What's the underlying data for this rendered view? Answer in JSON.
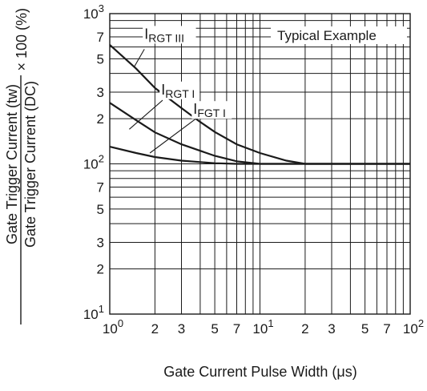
{
  "chart_data": {
    "type": "line",
    "x_scale": "log",
    "y_scale": "log",
    "xlim": [
      1,
      100
    ],
    "ylim": [
      10,
      1000
    ],
    "grid": true,
    "xlabel": "Gate Current Pulse Width  (μs)",
    "ylabel": {
      "numerator": "Gate Trigger Current  (tw)",
      "denominator": "Gate Trigger Current  (DC)",
      "suffix": "× 100 (%)"
    },
    "legend_box": "Typical Example",
    "x_ticks": [
      {
        "value": 1,
        "base": "10",
        "exp": "0"
      },
      {
        "value": 2,
        "label": "2"
      },
      {
        "value": 3,
        "label": "3"
      },
      {
        "value": 5,
        "label": "5"
      },
      {
        "value": 7,
        "label": "7"
      },
      {
        "value": 10,
        "base": "10",
        "exp": "1"
      },
      {
        "value": 20,
        "label": "2"
      },
      {
        "value": 30,
        "label": "3"
      },
      {
        "value": 50,
        "label": "5"
      },
      {
        "value": 70,
        "label": "7"
      },
      {
        "value": 100,
        "base": "10",
        "exp": "2"
      }
    ],
    "y_ticks": [
      {
        "value": 1000,
        "base": "10",
        "exp": "3"
      },
      {
        "value": 700,
        "label": "7"
      },
      {
        "value": 500,
        "label": "5"
      },
      {
        "value": 300,
        "label": "3"
      },
      {
        "value": 200,
        "label": "2"
      },
      {
        "value": 100,
        "base": "10",
        "exp": "2"
      },
      {
        "value": 70,
        "label": "7"
      },
      {
        "value": 50,
        "label": "5"
      },
      {
        "value": 30,
        "label": "3"
      },
      {
        "value": 20,
        "label": "2"
      },
      {
        "value": 10,
        "base": "10",
        "exp": "1"
      }
    ],
    "x_grid": [
      1,
      2,
      3,
      4,
      5,
      6,
      7,
      8,
      9,
      10,
      20,
      30,
      40,
      50,
      60,
      70,
      80,
      90,
      100
    ],
    "y_grid": [
      10,
      20,
      30,
      40,
      50,
      60,
      70,
      80,
      90,
      100,
      200,
      300,
      400,
      500,
      600,
      700,
      800,
      900,
      1000
    ],
    "series": [
      {
        "label_main": "I",
        "label_sub": "RGT III",
        "points": [
          [
            1,
            620
          ],
          [
            1.5,
            430
          ],
          [
            2,
            320
          ],
          [
            3,
            235
          ],
          [
            4,
            190
          ],
          [
            5,
            163
          ],
          [
            7,
            135
          ],
          [
            10,
            118
          ],
          [
            15,
            105
          ],
          [
            20,
            100
          ],
          [
            50,
            100
          ],
          [
            100,
            100
          ]
        ],
        "label_anchor": [
          1.7,
          680
        ],
        "leader": [
          [
            1.7,
            580
          ],
          [
            1.45,
            440
          ]
        ]
      },
      {
        "label_main": "I",
        "label_sub": "RGT I",
        "points": [
          [
            1,
            255
          ],
          [
            1.5,
            195
          ],
          [
            2,
            162
          ],
          [
            3,
            135
          ],
          [
            5,
            113
          ],
          [
            7,
            104
          ],
          [
            10,
            100
          ],
          [
            100,
            100
          ]
        ],
        "label_anchor": [
          2.2,
          290
        ],
        "leader": [
          [
            2.25,
            265
          ],
          [
            1.35,
            170
          ]
        ]
      },
      {
        "label_main": "I",
        "label_sub": "FGT I",
        "points": [
          [
            1,
            130
          ],
          [
            1.5,
            118
          ],
          [
            2,
            111
          ],
          [
            3,
            105
          ],
          [
            5,
            101
          ],
          [
            7,
            100
          ],
          [
            100,
            100
          ]
        ],
        "label_anchor": [
          3.6,
          215
        ],
        "leader": [
          [
            3.7,
            198
          ],
          [
            1.85,
            118
          ]
        ]
      }
    ]
  }
}
